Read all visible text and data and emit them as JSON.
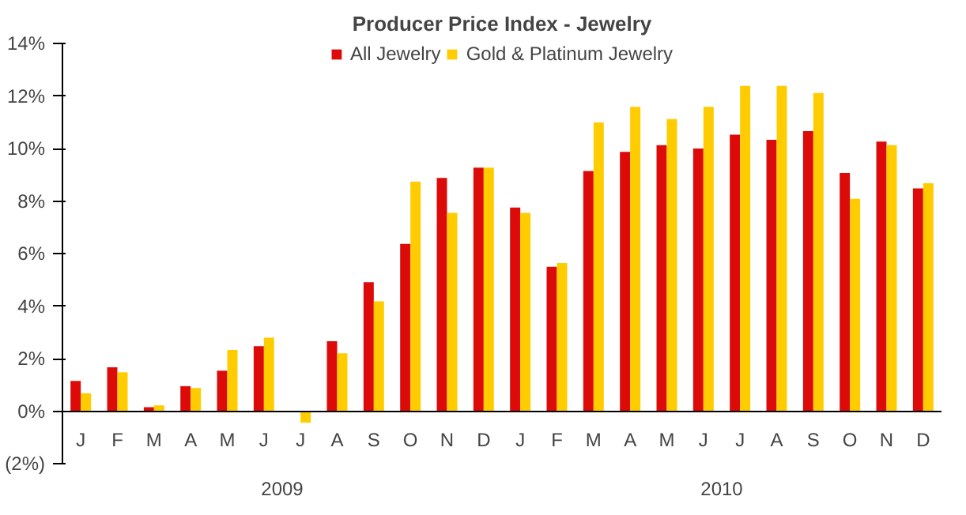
{
  "chart_data": {
    "type": "bar",
    "title": "Producer Price Index - Jewelry",
    "categories": [
      "J",
      "F",
      "M",
      "A",
      "M",
      "J",
      "J",
      "A",
      "S",
      "O",
      "N",
      "D",
      "J",
      "F",
      "M",
      "A",
      "M",
      "J",
      "J",
      "A",
      "S",
      "O",
      "N",
      "D"
    ],
    "series": [
      {
        "name": "All Jewelry",
        "color": "#dd0a0a",
        "values": [
          1.15,
          1.67,
          0.15,
          0.95,
          1.54,
          2.47,
          0,
          2.66,
          4.91,
          6.37,
          8.88,
          9.27,
          7.75,
          5.5,
          9.14,
          9.87,
          10.13,
          10.0,
          10.53,
          10.33,
          10.66,
          9.07,
          10.26,
          8.48
        ]
      },
      {
        "name": "Gold & Platinum Jewelry",
        "color": "#ffcc00",
        "values": [
          0.68,
          1.48,
          0.22,
          0.88,
          2.33,
          2.8,
          -0.44,
          2.2,
          4.18,
          8.74,
          7.55,
          9.27,
          7.55,
          5.64,
          10.99,
          11.59,
          11.12,
          11.59,
          12.38,
          12.38,
          12.11,
          8.08,
          10.13,
          8.68
        ]
      }
    ],
    "annotations": [
      "2009",
      "2010"
    ],
    "ylim": [
      -2,
      14
    ],
    "yticks": [
      {
        "value": -2,
        "label": "(2%)"
      },
      {
        "value": 0,
        "label": "0%"
      },
      {
        "value": 2,
        "label": "2%"
      },
      {
        "value": 4,
        "label": "4%"
      },
      {
        "value": 6,
        "label": "6%"
      },
      {
        "value": 8,
        "label": "8%"
      },
      {
        "value": 10,
        "label": "10%"
      },
      {
        "value": 12,
        "label": "12%"
      },
      {
        "value": 14,
        "label": "14%"
      }
    ],
    "grid": false,
    "legend": "top"
  }
}
